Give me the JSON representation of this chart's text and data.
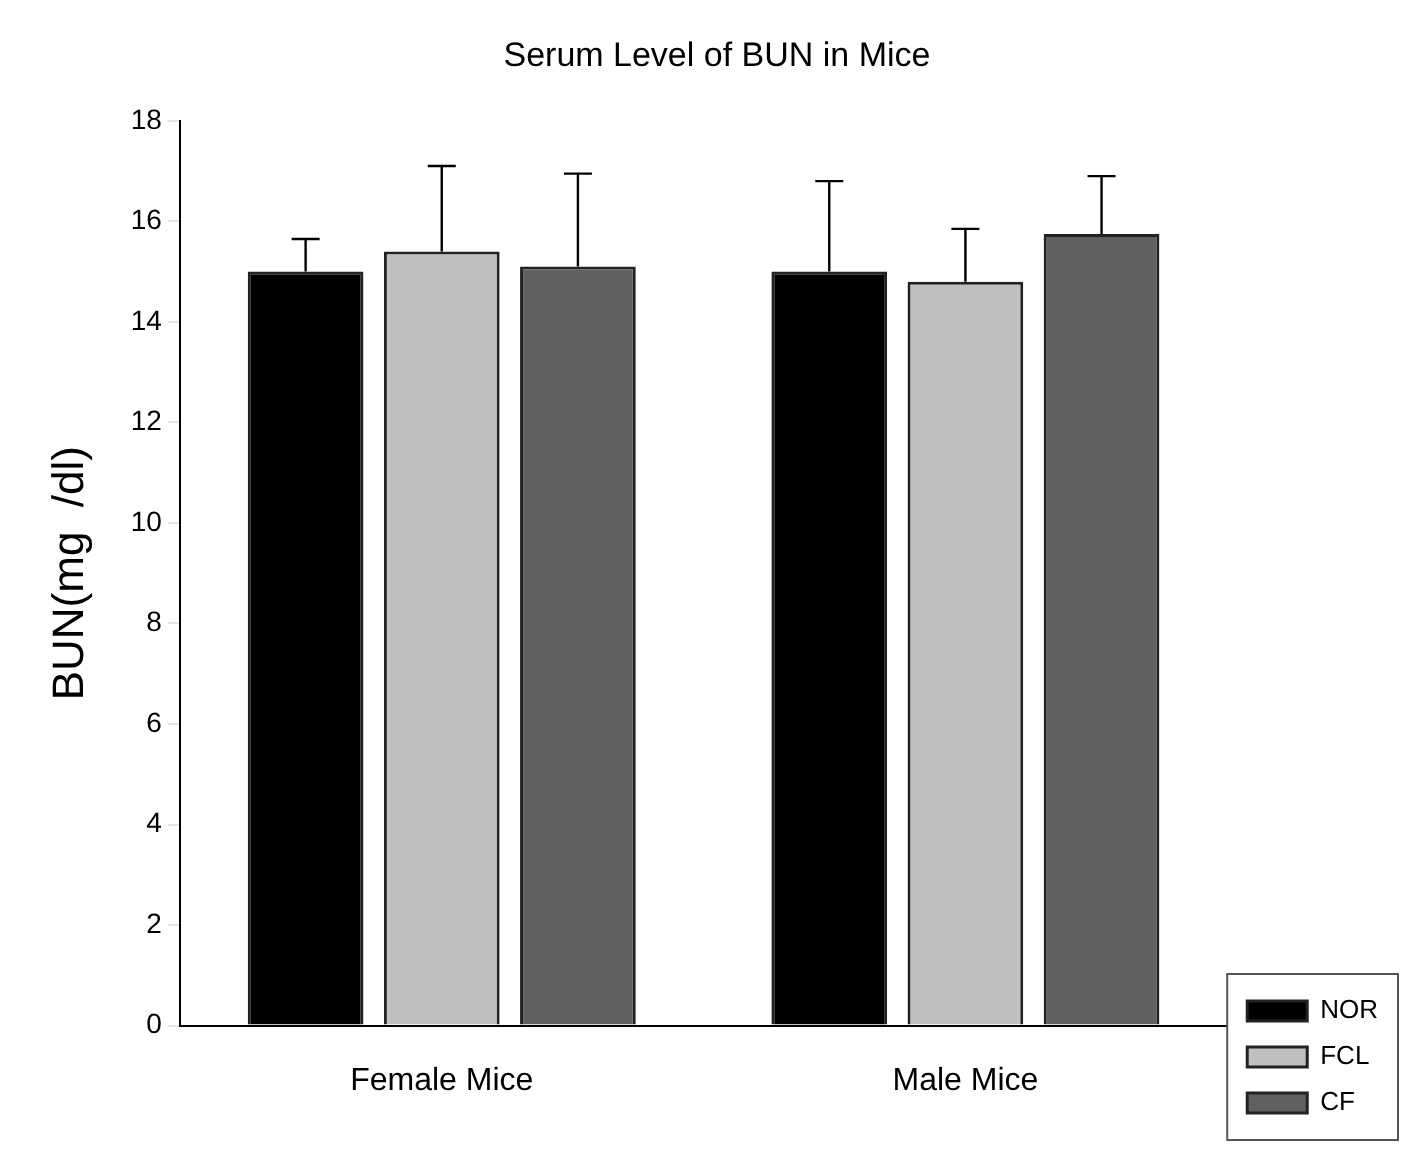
{
  "chart_data": {
    "type": "bar",
    "title": "Serum Level of BUN in Mice",
    "ylabel": "BUN(mg  /dl)",
    "categories": [
      "Female Mice",
      "Male Mice"
    ],
    "series": [
      {
        "name": "NOR",
        "color": "#000000",
        "values": [
          15.0,
          15.0
        ],
        "errors": [
          0.65,
          1.8
        ]
      },
      {
        "name": "FCL",
        "color": "#c0c0c0",
        "values": [
          15.4,
          14.8
        ],
        "errors": [
          1.7,
          1.05
        ]
      },
      {
        "name": "CF",
        "color": "#606060",
        "values": [
          15.1,
          15.75
        ],
        "errors": [
          1.85,
          1.15
        ]
      }
    ],
    "ylim": [
      0,
      18
    ],
    "yticks": [
      0,
      2,
      4,
      6,
      8,
      10,
      12,
      14,
      16,
      18
    ],
    "grid": false,
    "legend": "bottom right"
  }
}
